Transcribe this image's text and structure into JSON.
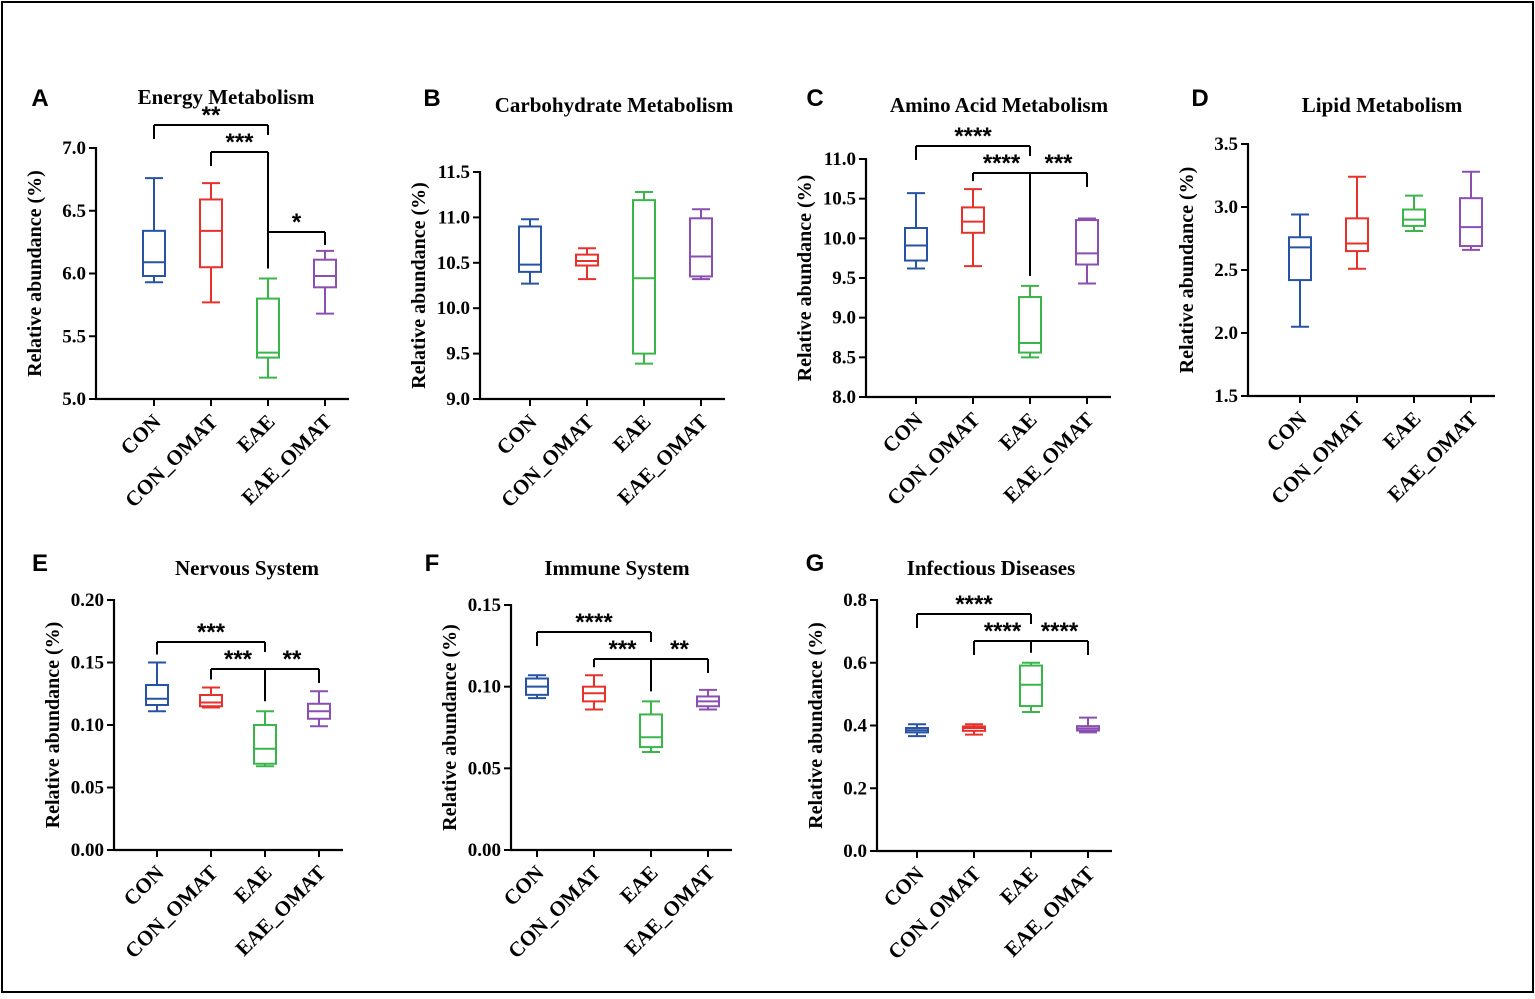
{
  "figure": {
    "colors": {
      "CON": "#2853a5",
      "CON_OMAT": "#e8312b",
      "EAE": "#3ab54a",
      "EAE_OMAT": "#8a4fb0",
      "frame": "#000000"
    }
  },
  "chart_data": [
    {
      "id": "A",
      "panel_label": "A",
      "type": "box",
      "title": "Energy Metabolism",
      "ylabel": "Relative abundance (%)",
      "categories": [
        "CON",
        "CON_OMAT",
        "EAE",
        "EAE_OMAT"
      ],
      "ylim": [
        5.0,
        7.0
      ],
      "yticks": [
        5.0,
        5.5,
        6.0,
        6.5,
        7.0
      ],
      "ytick_labels": [
        "5.0",
        "5.5",
        "6.0",
        "6.5",
        "7.0"
      ],
      "boxes": [
        {
          "min": 5.93,
          "q1": 5.98,
          "median": 6.09,
          "q3": 6.34,
          "max": 6.76
        },
        {
          "min": 5.77,
          "q1": 6.05,
          "median": 6.34,
          "q3": 6.59,
          "max": 6.72
        },
        {
          "min": 5.17,
          "q1": 5.33,
          "median": 5.37,
          "q3": 5.8,
          "max": 5.96
        },
        {
          "min": 5.68,
          "q1": 5.89,
          "median": 5.98,
          "q3": 6.11,
          "max": 6.18
        }
      ],
      "significance": [
        {
          "from": 0,
          "to": 2,
          "stars": "**"
        },
        {
          "from": 1,
          "to": 2,
          "stars": "***"
        },
        {
          "from": 2,
          "to": 3,
          "stars": "*"
        }
      ]
    },
    {
      "id": "B",
      "panel_label": "B",
      "type": "box",
      "title": "Carbohydrate Metabolism",
      "ylabel": "Relative abundance (%)",
      "categories": [
        "CON",
        "CON_OMAT",
        "EAE",
        "EAE_OMAT"
      ],
      "ylim": [
        9.0,
        11.5
      ],
      "yticks": [
        9.0,
        9.5,
        10.0,
        10.5,
        11.0,
        11.5
      ],
      "ytick_labels": [
        "9.0",
        "9.5",
        "10.0",
        "10.5",
        "11.0",
        "11.5"
      ],
      "boxes": [
        {
          "min": 10.27,
          "q1": 10.4,
          "median": 10.48,
          "q3": 10.9,
          "max": 10.98
        },
        {
          "min": 10.32,
          "q1": 10.47,
          "median": 10.52,
          "q3": 10.59,
          "max": 10.66
        },
        {
          "min": 9.39,
          "q1": 9.5,
          "median": 10.33,
          "q3": 11.19,
          "max": 11.28
        },
        {
          "min": 10.32,
          "q1": 10.35,
          "median": 10.57,
          "q3": 10.99,
          "max": 11.09
        }
      ],
      "significance": []
    },
    {
      "id": "C",
      "panel_label": "C",
      "type": "box",
      "title": "Amino Acid Metabolism",
      "ylabel": "Relative abundance (%)",
      "categories": [
        "CON",
        "CON_OMAT",
        "EAE",
        "EAE_OMAT"
      ],
      "ylim": [
        8.0,
        11.0
      ],
      "yticks": [
        8.0,
        8.5,
        9.0,
        9.5,
        10.0,
        10.5,
        11.0
      ],
      "ytick_labels": [
        "8.0",
        "8.5",
        "9.0",
        "9.5",
        "10.0",
        "10.5",
        "11.0"
      ],
      "boxes": [
        {
          "min": 9.62,
          "q1": 9.72,
          "median": 9.91,
          "q3": 10.13,
          "max": 10.57
        },
        {
          "min": 9.65,
          "q1": 10.07,
          "median": 10.21,
          "q3": 10.39,
          "max": 10.62
        },
        {
          "min": 8.5,
          "q1": 8.56,
          "median": 8.68,
          "q3": 9.26,
          "max": 9.4
        },
        {
          "min": 9.43,
          "q1": 9.67,
          "median": 9.81,
          "q3": 10.23,
          "max": 10.25
        }
      ],
      "significance": [
        {
          "from": 0,
          "to": 2,
          "stars": "****"
        },
        {
          "from": 1,
          "to": 2,
          "stars": "****"
        },
        {
          "from": 2,
          "to": 3,
          "stars": "***"
        }
      ]
    },
    {
      "id": "D",
      "panel_label": "D",
      "type": "box",
      "title": "Lipid Metabolism",
      "ylabel": "Relative abundance (%)",
      "categories": [
        "CON",
        "CON_OMAT",
        "EAE",
        "EAE_OMAT"
      ],
      "ylim": [
        1.5,
        3.5
      ],
      "yticks": [
        1.5,
        2.0,
        2.5,
        3.0,
        3.5
      ],
      "ytick_labels": [
        "1.5",
        "2.0",
        "2.5",
        "3.0",
        "3.5"
      ],
      "boxes": [
        {
          "min": 2.05,
          "q1": 2.42,
          "median": 2.68,
          "q3": 2.76,
          "max": 2.94
        },
        {
          "min": 2.51,
          "q1": 2.65,
          "median": 2.71,
          "q3": 2.91,
          "max": 3.24
        },
        {
          "min": 2.81,
          "q1": 2.85,
          "median": 2.9,
          "q3": 2.98,
          "max": 3.09
        },
        {
          "min": 2.66,
          "q1": 2.69,
          "median": 2.84,
          "q3": 3.07,
          "max": 3.28
        }
      ],
      "significance": []
    },
    {
      "id": "E",
      "panel_label": "E",
      "type": "box",
      "title": "Nervous System",
      "ylabel": "Relative abundance (%)",
      "categories": [
        "CON",
        "CON_OMAT",
        "EAE",
        "EAE_OMAT"
      ],
      "ylim": [
        0.0,
        0.2
      ],
      "yticks": [
        0.0,
        0.05,
        0.1,
        0.15,
        0.2
      ],
      "ytick_labels": [
        "0.00",
        "0.05",
        "0.10",
        "0.15",
        "0.20"
      ],
      "boxes": [
        {
          "min": 0.111,
          "q1": 0.116,
          "median": 0.121,
          "q3": 0.132,
          "max": 0.15
        },
        {
          "min": 0.114,
          "q1": 0.115,
          "median": 0.118,
          "q3": 0.124,
          "max": 0.13
        },
        {
          "min": 0.067,
          "q1": 0.069,
          "median": 0.081,
          "q3": 0.1,
          "max": 0.111
        },
        {
          "min": 0.099,
          "q1": 0.105,
          "median": 0.111,
          "q3": 0.117,
          "max": 0.127
        }
      ],
      "significance": [
        {
          "from": 0,
          "to": 2,
          "stars": "***"
        },
        {
          "from": 1,
          "to": 2,
          "stars": "***"
        },
        {
          "from": 2,
          "to": 3,
          "stars": "**"
        }
      ]
    },
    {
      "id": "F",
      "panel_label": "F",
      "type": "box",
      "title": "Immune System",
      "ylabel": "Relative abundance (%)",
      "categories": [
        "CON",
        "CON_OMAT",
        "EAE",
        "EAE_OMAT"
      ],
      "ylim": [
        0.0,
        0.15
      ],
      "yticks": [
        0.0,
        0.05,
        0.1,
        0.15
      ],
      "ytick_labels": [
        "0.00",
        "0.05",
        "0.10",
        "0.15"
      ],
      "boxes": [
        {
          "min": 0.093,
          "q1": 0.095,
          "median": 0.1,
          "q3": 0.105,
          "max": 0.107
        },
        {
          "min": 0.086,
          "q1": 0.091,
          "median": 0.096,
          "q3": 0.1,
          "max": 0.107
        },
        {
          "min": 0.06,
          "q1": 0.063,
          "median": 0.069,
          "q3": 0.083,
          "max": 0.091
        },
        {
          "min": 0.086,
          "q1": 0.088,
          "median": 0.091,
          "q3": 0.094,
          "max": 0.098
        }
      ],
      "significance": [
        {
          "from": 0,
          "to": 2,
          "stars": "****"
        },
        {
          "from": 1,
          "to": 2,
          "stars": "***"
        },
        {
          "from": 2,
          "to": 3,
          "stars": "**"
        }
      ]
    },
    {
      "id": "G",
      "panel_label": "G",
      "type": "box",
      "title": "Infectious Diseases",
      "ylabel": "Relative abundance (%)",
      "categories": [
        "CON",
        "CON_OMAT",
        "EAE",
        "EAE_OMAT"
      ],
      "ylim": [
        0.0,
        0.8
      ],
      "yticks": [
        0.0,
        0.2,
        0.4,
        0.6,
        0.8
      ],
      "ytick_labels": [
        "0.0",
        "0.2",
        "0.4",
        "0.6",
        "0.8"
      ],
      "boxes": [
        {
          "min": 0.366,
          "q1": 0.378,
          "median": 0.385,
          "q3": 0.392,
          "max": 0.404
        },
        {
          "min": 0.371,
          "q1": 0.383,
          "median": 0.392,
          "q3": 0.397,
          "max": 0.404
        },
        {
          "min": 0.443,
          "q1": 0.462,
          "median": 0.53,
          "q3": 0.591,
          "max": 0.6
        },
        {
          "min": 0.378,
          "q1": 0.384,
          "median": 0.391,
          "q3": 0.398,
          "max": 0.425
        }
      ],
      "significance": [
        {
          "from": 0,
          "to": 2,
          "stars": "****"
        },
        {
          "from": 1,
          "to": 2,
          "stars": "****"
        },
        {
          "from": 2,
          "to": 3,
          "stars": "****"
        }
      ]
    }
  ]
}
